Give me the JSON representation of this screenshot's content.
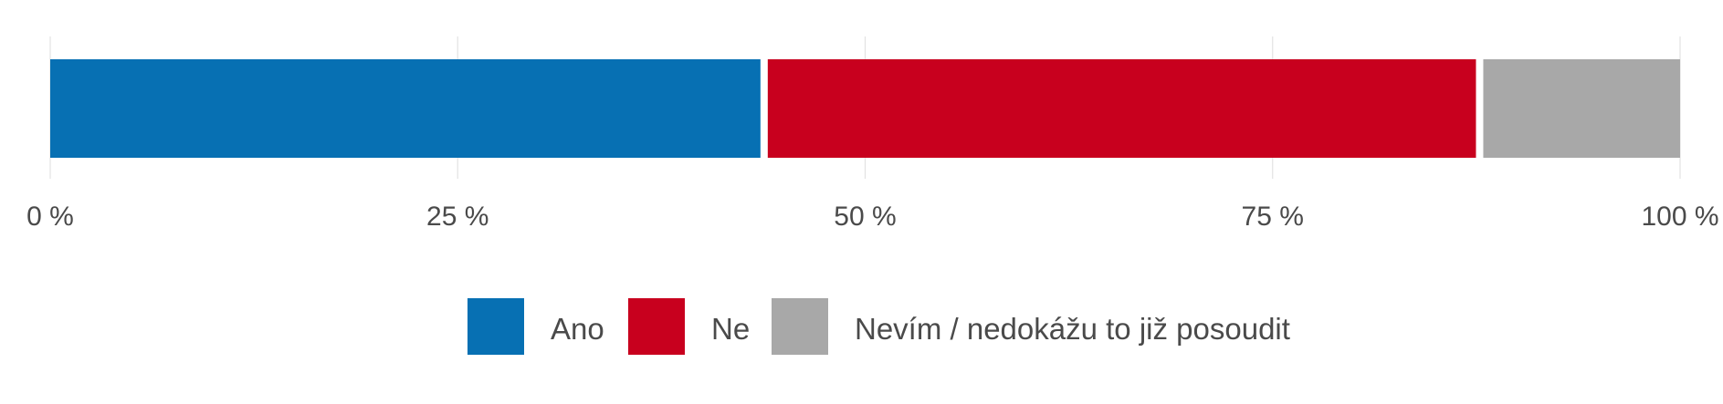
{
  "chart_data": {
    "type": "bar",
    "orientation": "horizontal",
    "stacked": true,
    "categories": [
      ""
    ],
    "series": [
      {
        "name": "Ano",
        "values": [
          43.8
        ],
        "color": "#0770b3"
      },
      {
        "name": "Ne",
        "values": [
          43.9
        ],
        "color": "#c8001e"
      },
      {
        "name": "Nevím / nedokážu to již posoudit",
        "values": [
          12.3
        ],
        "color": "#a8a8a8"
      }
    ],
    "xlim": [
      0,
      100
    ],
    "x_ticks": [
      {
        "value": 0,
        "label": "0 %"
      },
      {
        "value": 25,
        "label": "25 %"
      },
      {
        "value": 50,
        "label": "50 %"
      },
      {
        "value": 75,
        "label": "75 %"
      },
      {
        "value": 100,
        "label": "100 %"
      }
    ],
    "grid": true,
    "legend_position": "bottom"
  }
}
